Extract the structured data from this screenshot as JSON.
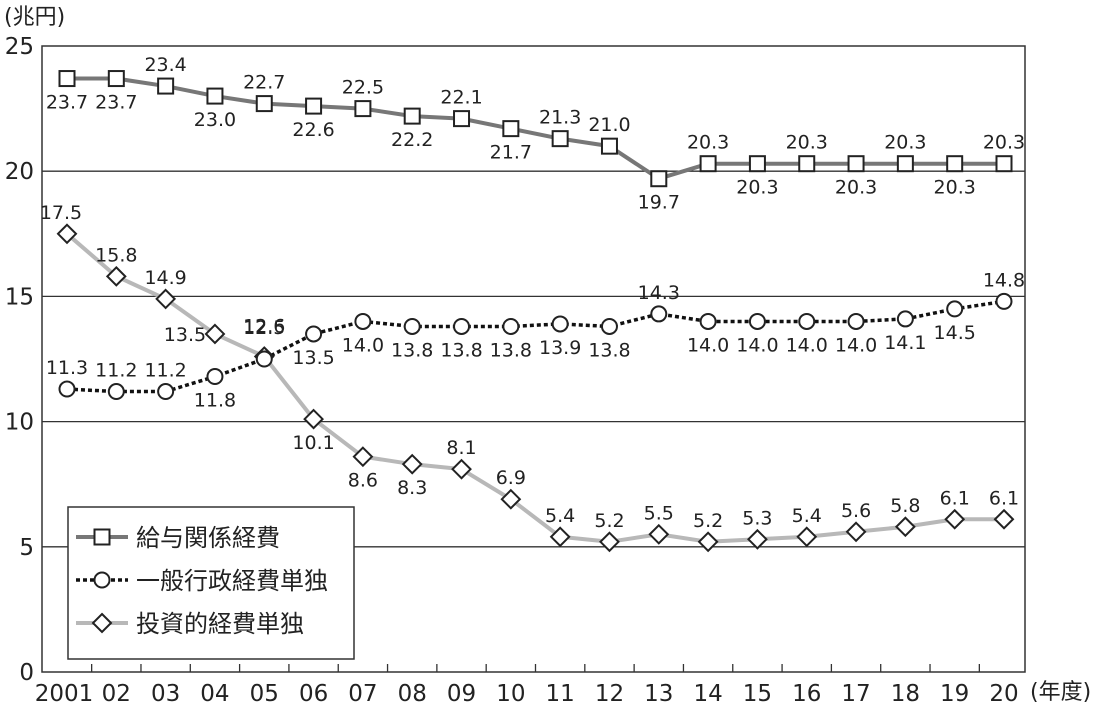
{
  "chart_data": {
    "type": "line",
    "ylabel": "(兆円)",
    "xlabel": "(年度)",
    "ylim": [
      0,
      25
    ],
    "yticks": [
      0,
      5,
      10,
      15,
      20,
      25
    ],
    "grid": "horizontal",
    "legend_position": "bottom-left",
    "categories": [
      "2001",
      "02",
      "03",
      "04",
      "05",
      "06",
      "07",
      "08",
      "09",
      "10",
      "11",
      "12",
      "13",
      "14",
      "15",
      "16",
      "17",
      "18",
      "19",
      "20"
    ],
    "series": [
      {
        "name": "給与関係経費",
        "marker": "square",
        "style": "solid",
        "color": "#777777",
        "values": [
          23.7,
          23.7,
          23.4,
          23.0,
          22.7,
          22.6,
          22.5,
          22.2,
          22.1,
          21.7,
          21.3,
          21.0,
          19.7,
          20.3,
          20.3,
          20.3,
          20.3,
          20.3,
          20.3,
          20.3
        ]
      },
      {
        "name": "一般行政経費単独",
        "marker": "circle",
        "style": "dotted",
        "color": "#111111",
        "values": [
          11.3,
          11.2,
          11.2,
          11.8,
          12.5,
          13.5,
          14.0,
          13.8,
          13.8,
          13.8,
          13.9,
          13.8,
          14.3,
          14.0,
          14.0,
          14.0,
          14.0,
          14.1,
          14.5,
          14.8
        ]
      },
      {
        "name": "投資的経費単独",
        "marker": "diamond",
        "style": "solid",
        "color": "#b8b8b8",
        "values": [
          17.5,
          15.8,
          14.9,
          13.5,
          12.6,
          10.1,
          8.6,
          8.3,
          8.1,
          6.9,
          5.4,
          5.2,
          5.5,
          5.2,
          5.3,
          5.4,
          5.6,
          5.8,
          6.1,
          6.1
        ]
      }
    ]
  }
}
